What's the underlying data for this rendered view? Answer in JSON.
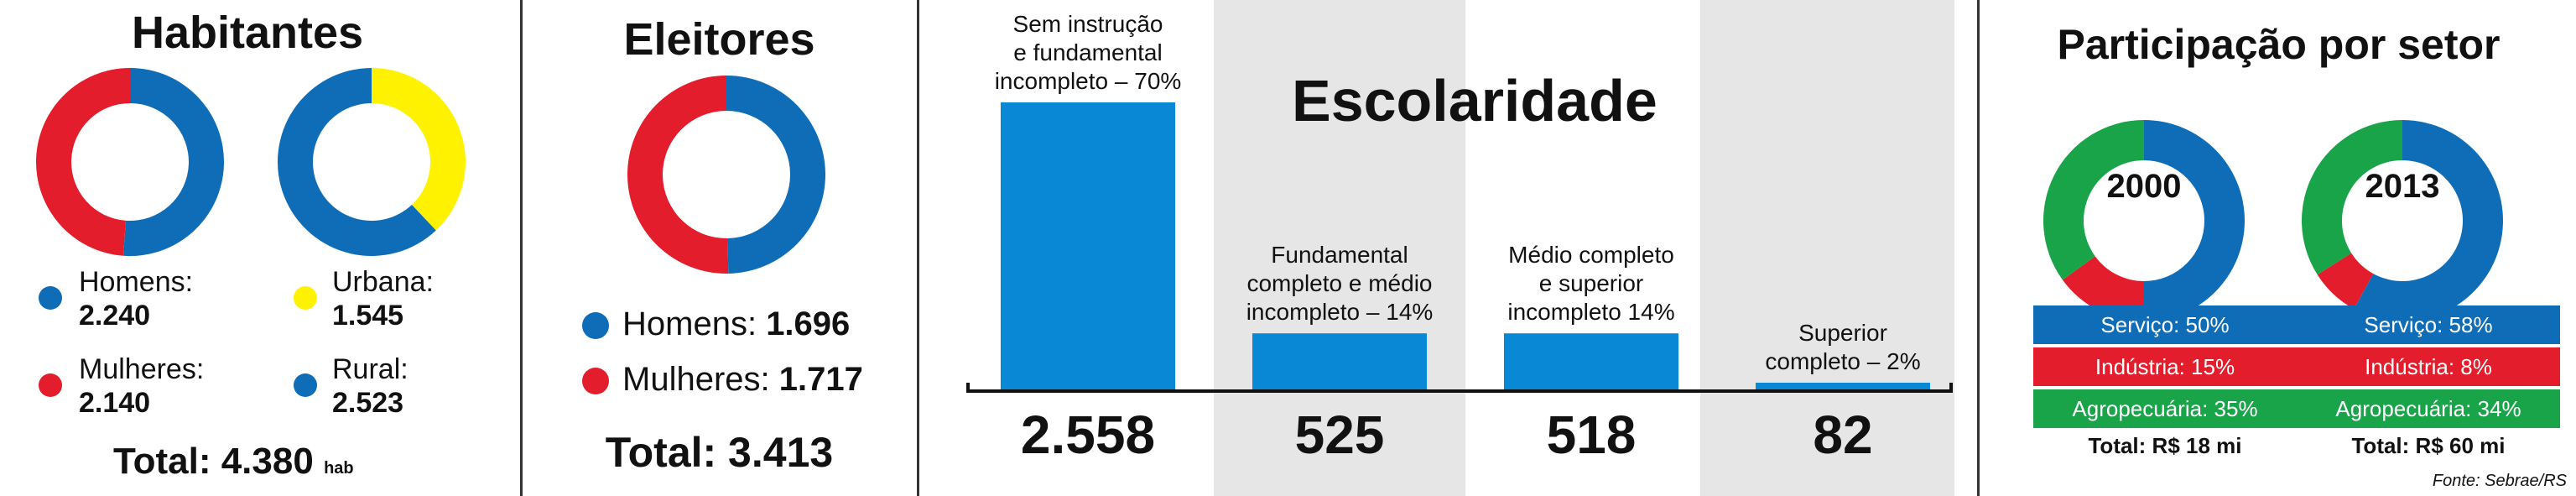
{
  "colors": {
    "blue": "#0f6db8",
    "red": "#e31d2b",
    "yellow": "#fff200",
    "green": "#1aa44a",
    "bar_blue": "#0988d6",
    "gray_band": "#e6e6e6"
  },
  "habitantes": {
    "title": "Habitantes",
    "homens_label": "Homens:",
    "homens_value": "2.240",
    "mulheres_label": "Mulheres:",
    "mulheres_value": "2.140",
    "urbana_label": "Urbana:",
    "urbana_value": "1.545",
    "rural_label": "Rural:",
    "rural_value": "2.523",
    "total_label": "Total: 4.380",
    "total_unit": "hab"
  },
  "eleitores": {
    "title": "Eleitores",
    "homens_label": "Homens:",
    "homens_value": "1.696",
    "mulheres_label": "Mulheres:",
    "mulheres_value": "1.717",
    "total_label": "Total: 3.413"
  },
  "escolaridade": {
    "title": "Escolaridade",
    "bars": [
      {
        "label_lines": [
          "Sem instrução",
          "e fundamental",
          "incompleto – 70%"
        ],
        "percent": 70,
        "value": "2.558"
      },
      {
        "label_lines": [
          "Fundamental",
          "completo e médio",
          "incompleto – 14%"
        ],
        "percent": 14,
        "value": "525"
      },
      {
        "label_lines": [
          "Médio completo",
          "e superior",
          "incompleto 14%"
        ],
        "percent": 14,
        "value": "518"
      },
      {
        "label_lines": [
          "Superior",
          "completo – 2%"
        ],
        "percent": 2,
        "value": "82"
      }
    ]
  },
  "participacao": {
    "title": "Participação por setor",
    "y2000": {
      "year": "2000",
      "servico": "Serviço: 50%",
      "industria": "Indústria: 15%",
      "agro": "Agropecuária: 35%",
      "total": "Total: R$ 18 mi"
    },
    "y2013": {
      "year": "2013",
      "servico": "Serviço: 58%",
      "industria": "Indústria: 8%",
      "agro": "Agropecuária: 34%",
      "total": "Total: R$ 60 mi"
    },
    "source": "Fonte: Sebrae/RS"
  },
  "chart_data": [
    {
      "type": "pie",
      "title": "Habitantes",
      "categories": [
        "Homens",
        "Mulheres"
      ],
      "values": [
        2240,
        2140
      ]
    },
    {
      "type": "pie",
      "title": "",
      "categories": [
        "Urbana",
        "Rural"
      ],
      "values": [
        1545,
        2523
      ]
    },
    {
      "type": "pie",
      "title": "Eleitores",
      "categories": [
        "Homens",
        "Mulheres"
      ],
      "values": [
        1696,
        1717
      ]
    },
    {
      "type": "bar",
      "title": "Escolaridade",
      "categories": [
        "Sem instrução e fundamental incompleto",
        "Fundamental completo e médio incompleto",
        "Médio completo e superior incompleto",
        "Superior completo"
      ],
      "values": [
        2558,
        525,
        518,
        82
      ],
      "percent": [
        70,
        14,
        14,
        2
      ]
    },
    {
      "type": "pie",
      "title": "2000",
      "categories": [
        "Serviço",
        "Indústria",
        "Agropecuária"
      ],
      "values": [
        50,
        15,
        35
      ]
    },
    {
      "type": "pie",
      "title": "2013",
      "categories": [
        "Serviço",
        "Indústria",
        "Agropecuária"
      ],
      "values": [
        58,
        8,
        34
      ]
    }
  ]
}
